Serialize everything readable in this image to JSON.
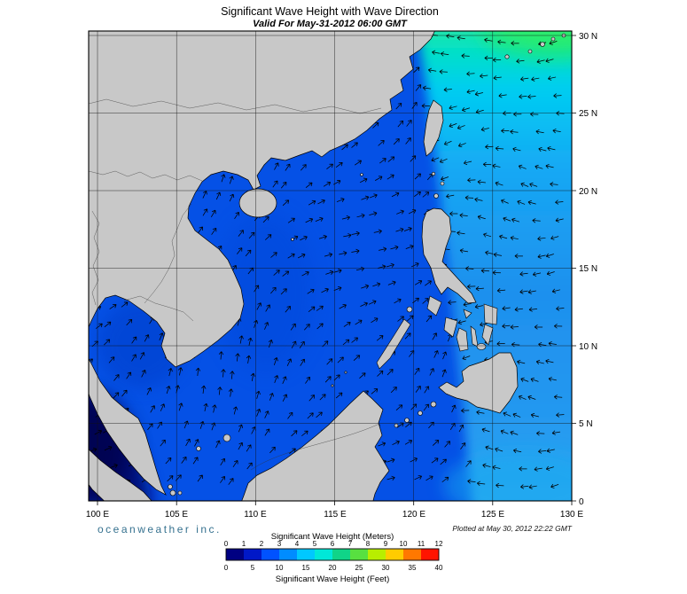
{
  "header": {
    "title": "Significant Wave Height with Wave Direction",
    "subtitle": "Valid For May-31-2012 06:00 GMT"
  },
  "axes": {
    "lat": [
      "30 N",
      "25 N",
      "20 N",
      "15 N",
      "10 N",
      "5 N",
      "0"
    ],
    "lon": [
      "100 E",
      "105 E",
      "110 E",
      "115 E",
      "120 E",
      "125 E",
      "130 E"
    ]
  },
  "legend": {
    "meters_title": "Significant Wave Height (Meters)",
    "meters_ticks": [
      "0",
      "1",
      "2",
      "3",
      "4",
      "5",
      "6",
      "7",
      "8",
      "9",
      "10",
      "11",
      "12"
    ],
    "feet_title": "Significant Wave Height (Feet)",
    "feet_ticks": [
      "0",
      "5",
      "10",
      "15",
      "20",
      "25",
      "30",
      "35",
      "40"
    ],
    "colors": [
      "#000082",
      "#0018c8",
      "#0052ff",
      "#008cff",
      "#00c8ff",
      "#00e8d8",
      "#10d488",
      "#58e040",
      "#b8ee00",
      "#ffcc00",
      "#ff7800",
      "#ff1400"
    ]
  },
  "footer": {
    "brand": "oceanweather inc.",
    "plotted": "Plotted at May 30, 2012 22:22 GMT"
  },
  "map_colors": {
    "ocean_base": "#0551e6",
    "land": "#c8c8c8",
    "pacific_cyan": "#00c8f0",
    "high_wave_green": "#28e890",
    "dark_low_region": "#000a78"
  },
  "chart_data": {
    "type": "heatmap",
    "title": "Significant Wave Height with Wave Direction",
    "valid_time": "May-31-2012 06:00 GMT",
    "x_ticks_lon": [
      100,
      105,
      110,
      115,
      120,
      125,
      130
    ],
    "y_ticks_lat": [
      30,
      25,
      20,
      15,
      10,
      5,
      0
    ],
    "colorbar_meters_range": [
      0,
      12
    ],
    "colorbar_feet_range": [
      0,
      40
    ],
    "plotted_at": "May 30, 2012 22:22 GMT"
  }
}
